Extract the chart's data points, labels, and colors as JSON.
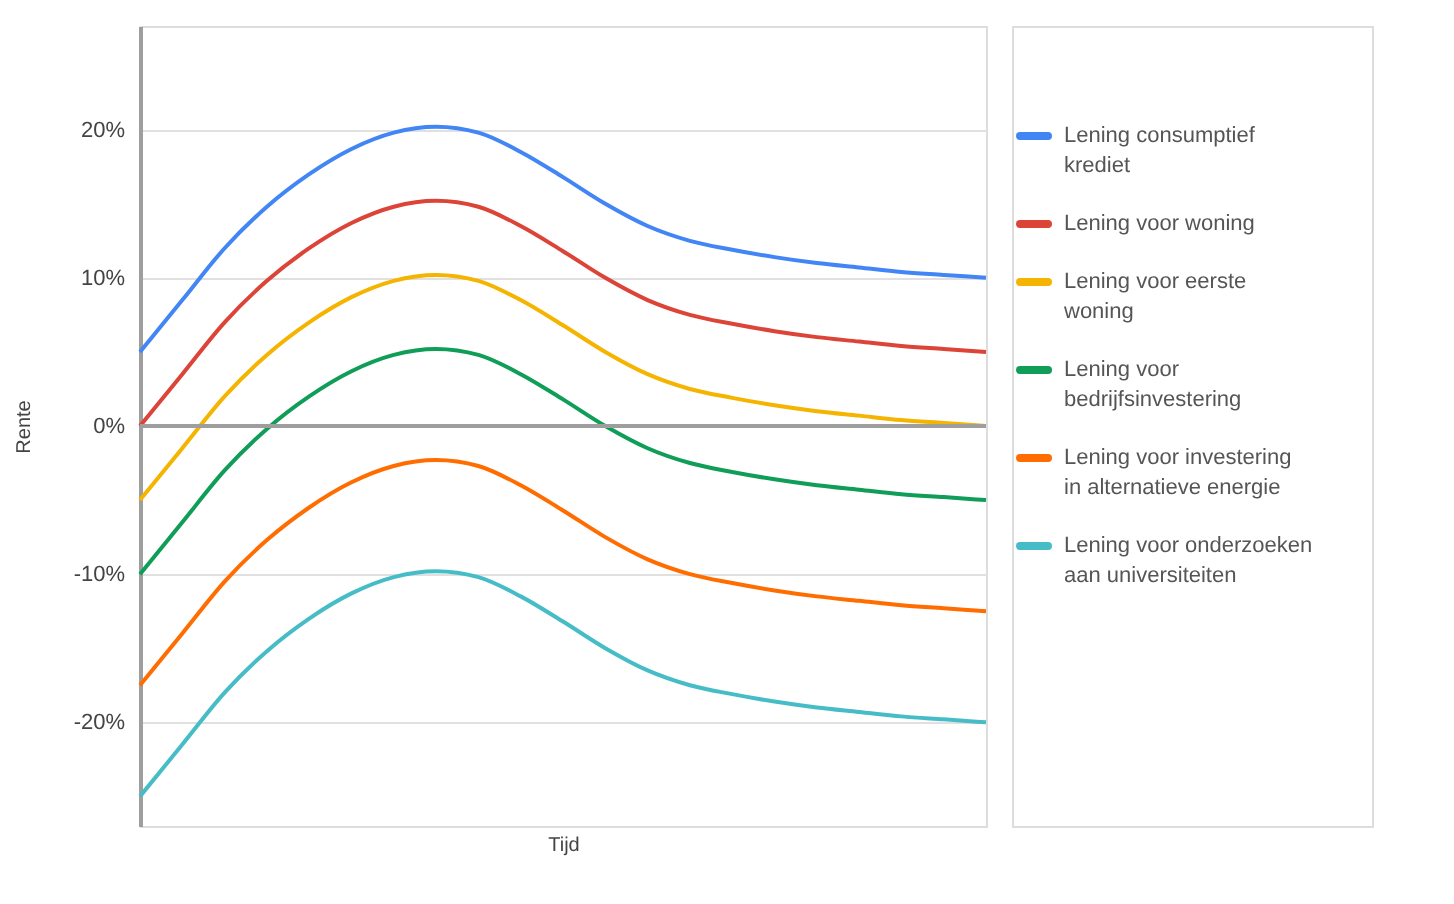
{
  "chart_data": {
    "type": "line",
    "xlabel": "Tijd",
    "ylabel": "Rente",
    "categories": [
      null,
      null,
      null,
      null,
      null,
      null,
      null,
      null,
      null,
      null,
      null,
      null,
      null,
      null,
      null,
      null,
      null,
      null,
      null,
      null,
      null
    ],
    "series": [
      {
        "name": "Lening consumptief krediet",
        "color": "#4285f4",
        "values": [
          5,
          8.5,
          12,
          14.8,
          17,
          18.7,
          19.8,
          20.2,
          19.8,
          18.5,
          16.8,
          15,
          13.5,
          12.5,
          11.9,
          11.4,
          11,
          10.7,
          10.4,
          10.2,
          10
        ]
      },
      {
        "name": "Lening voor woning",
        "color": "#db4437",
        "values": [
          0,
          3.5,
          7,
          9.8,
          12,
          13.7,
          14.8,
          15.2,
          14.8,
          13.5,
          11.8,
          10,
          8.5,
          7.5,
          6.9,
          6.4,
          6,
          5.7,
          5.4,
          5.2,
          5
        ]
      },
      {
        "name": "Lening voor eerste woning",
        "color": "#f4b400",
        "values": [
          -5,
          -1.5,
          2,
          4.8,
          7,
          8.7,
          9.8,
          10.2,
          9.8,
          8.5,
          6.8,
          5,
          3.5,
          2.5,
          1.9,
          1.4,
          1,
          0.7,
          0.4,
          0.2,
          0
        ]
      },
      {
        "name": "Lening voor bedrijfsinvestering",
        "color": "#0f9d58",
        "values": [
          -10,
          -6.5,
          -3,
          -0.2,
          2,
          3.7,
          4.8,
          5.2,
          4.8,
          3.5,
          1.8,
          0,
          -1.5,
          -2.5,
          -3.1,
          -3.6,
          -4,
          -4.3,
          -4.6,
          -4.8,
          -5
        ]
      },
      {
        "name": "Lening voor investering in alternatieve energie",
        "color": "#ff6d00",
        "values": [
          -17.5,
          -14,
          -10.5,
          -7.7,
          -5.5,
          -3.8,
          -2.7,
          -2.3,
          -2.7,
          -4,
          -5.7,
          -7.5,
          -9,
          -10,
          -10.6,
          -11.1,
          -11.5,
          -11.8,
          -12.1,
          -12.3,
          -12.5
        ]
      },
      {
        "name": "Lening voor onderzoeken aan universiteiten",
        "color": "#46bdc6",
        "values": [
          -25,
          -21.5,
          -18,
          -15.2,
          -13,
          -11.3,
          -10.2,
          -9.8,
          -10.2,
          -11.5,
          -13.2,
          -15,
          -16.5,
          -17.5,
          -18.1,
          -18.6,
          -19,
          -19.3,
          -19.6,
          -19.8,
          -20
        ]
      }
    ],
    "ylim": [
      -27,
      27
    ],
    "yticks": [
      {
        "value": -20,
        "label": "-20%"
      },
      {
        "value": -10,
        "label": "-10%"
      },
      {
        "value": 0,
        "label": "0%"
      },
      {
        "value": 10,
        "label": "10%"
      },
      {
        "value": 20,
        "label": "20%"
      }
    ],
    "ref_lines": [
      {
        "axis": "y",
        "value": 0,
        "color": "#9e9e9e"
      }
    ],
    "grid": "y",
    "legend": "right",
    "tick_labels": "y",
    "marker": "none",
    "line_style": "solid"
  }
}
